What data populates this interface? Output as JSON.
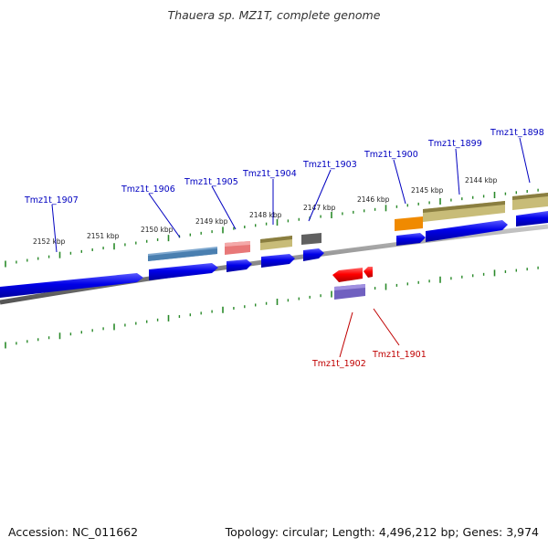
{
  "title": "Thauera sp. MZ1T, complete genome",
  "footer": {
    "accession": "Accession: NC_011662",
    "topology": "Topology: circular; Length: 4,496,212 bp; Genes: 3,974"
  },
  "tick_labels": [
    "2152 kbp",
    "2151 kbp",
    "2150 kbp",
    "2149 kbp",
    "2148 kbp",
    "2147 kbp",
    "2146 kbp",
    "2145 kbp",
    "2144 kbp"
  ],
  "genes_top": [
    "Tmz1t_1907",
    "Tmz1t_1906",
    "Tmz1t_1905",
    "Tmz1t_1904",
    "Tmz1t_1903",
    "Tmz1t_1900",
    "Tmz1t_1899",
    "Tmz1t_1898"
  ],
  "genes_bottom": [
    "Tmz1t_1902",
    "Tmz1t_1901"
  ],
  "colors": {
    "cds_forward": "#0000e0",
    "cds_reverse": "#ff0000",
    "backbone": "#888888",
    "ticks": "#2a8a2a",
    "label_forward": "#0000c0",
    "label_reverse": "#c00000",
    "feature_steelblue": "#4a7fb0",
    "feature_salmon": "#e87878",
    "feature_khaki": "#c8bc78",
    "feature_darkgray": "#606060",
    "feature_orange": "#f08a00",
    "feature_purple": "#7060c0"
  }
}
